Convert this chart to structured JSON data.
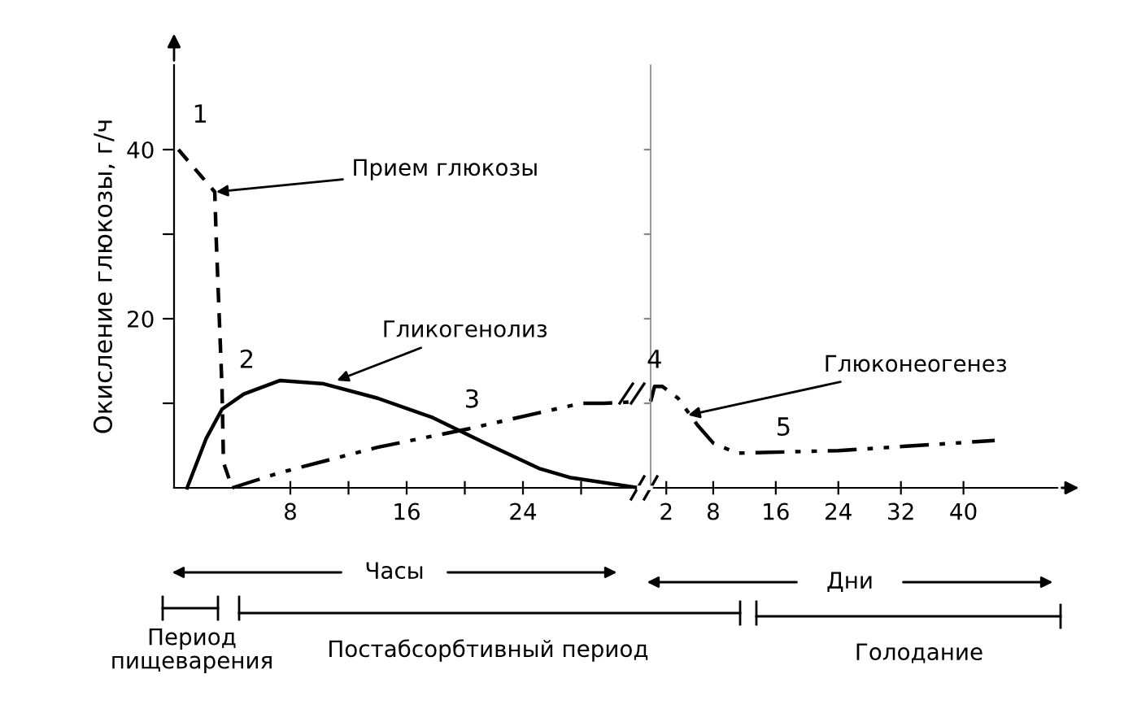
{
  "chart_data": [
    {
      "type": "line",
      "ylabel": "Окисление глюкозы, г/ч",
      "xlim": [
        0,
        32
      ],
      "ylim": [
        0,
        50
      ],
      "xticks": [
        8,
        {
          "value": 12,
          "label": null
        },
        16,
        {
          "value": 20,
          "label": null
        },
        24,
        {
          "value": 28,
          "label": null
        }
      ],
      "yticks": [
        {
          "value": 10,
          "label": null
        },
        20,
        {
          "value": 30,
          "label": null
        },
        40
      ],
      "grid": false,
      "legend": false,
      "marker": "none",
      "series": [
        {
          "color": "#000000",
          "line_style": "dashed",
          "x": [
            0.3,
            1.8,
            2.8,
            2.9,
            3.1,
            3.3,
            3.4,
            4.0
          ],
          "values": [
            40,
            37,
            35,
            29.5,
            20.6,
            11.8,
            3,
            0
          ]
        },
        {
          "color": "#000000",
          "line_style": "solid",
          "x": [
            0.9,
            2.2,
            3.3,
            4.8,
            7.3,
            10.3,
            14,
            17.8,
            21.4,
            25.1,
            27.3,
            32
          ],
          "values": [
            0,
            5.8,
            9.3,
            11.1,
            12.7,
            12.3,
            10.6,
            8.3,
            5.3,
            2.3,
            1.2,
            0
          ]
        },
        {
          "color": "#000000",
          "line_style": "dashdot",
          "x": [
            4,
            7.3,
            14,
            20.3,
            28,
            29.6,
            32
          ],
          "values": [
            0,
            1.8,
            4.8,
            7,
            10,
            10,
            10.2
          ]
        }
      ],
      "annotations": [
        "1",
        {
          "text": "Прием глюкозы",
          "x": 2.9,
          "y": 35
        },
        "2",
        {
          "text": "Гликогенолиз",
          "x": 11.2,
          "y": 12.7
        },
        "3",
        "Часы",
        "Период пищеварения",
        "Постабсорбтивный период"
      ]
    },
    {
      "type": "line",
      "xlim": [
        0,
        52
      ],
      "ylim": [
        0,
        50
      ],
      "yticks": [
        {
          "value": 10,
          "label": null
        },
        {
          "value": 20,
          "label": null
        },
        {
          "value": 30,
          "label": null
        },
        {
          "value": 40,
          "label": null
        }
      ],
      "xticks": [
        2,
        8,
        16,
        24,
        32,
        40
      ],
      "tick_labels": "x",
      "grid": false,
      "legend": false,
      "marker": "none",
      "series": [
        {
          "color": "#000000",
          "line_style": "dashdot",
          "x": [
            0,
            0.5,
            1.5,
            3.5,
            6,
            8,
            11,
            24,
            44
          ],
          "values": [
            10.2,
            12,
            12,
            10.6,
            7.4,
            5.3,
            4.1,
            4.4,
            5.6
          ]
        }
      ],
      "annotations": [
        "4",
        {
          "text": "Глюконеогенез",
          "x": 4.8,
          "y": 8.6
        },
        "5",
        "Дни",
        "Голодание"
      ]
    }
  ]
}
